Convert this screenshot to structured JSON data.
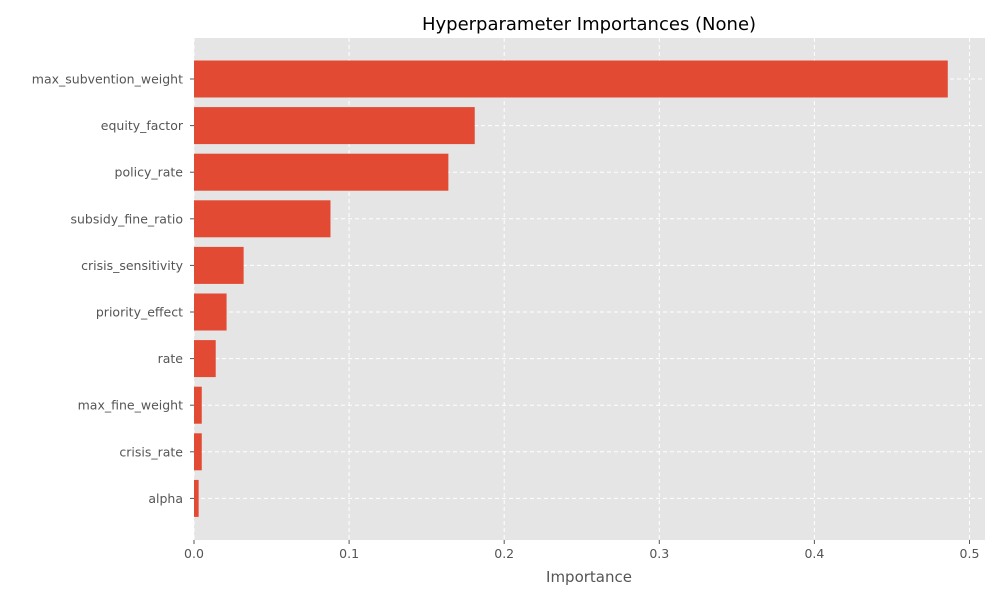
{
  "chart_data": {
    "type": "bar",
    "orientation": "horizontal",
    "title": "Hyperparameter Importances (None)",
    "xlabel": "Importance",
    "ylabel": "",
    "categories": [
      "max_subvention_weight",
      "equity_factor",
      "policy_rate",
      "subsidy_fine_ratio",
      "crisis_sensitivity",
      "priority_effect",
      "rate",
      "max_fine_weight",
      "crisis_rate",
      "alpha"
    ],
    "values": [
      0.486,
      0.181,
      0.164,
      0.088,
      0.032,
      0.021,
      0.014,
      0.005,
      0.005,
      0.003
    ],
    "xlim": [
      0,
      0.51
    ],
    "xticks": [
      0,
      0.1,
      0.2,
      0.3,
      0.4,
      0.5
    ],
    "xtick_labels": [
      "0.0",
      "0.1",
      "0.2",
      "0.3",
      "0.4",
      "0.5"
    ],
    "grid": true,
    "bar_color": "#E24A33",
    "plot_background": "#E5E5E5"
  }
}
